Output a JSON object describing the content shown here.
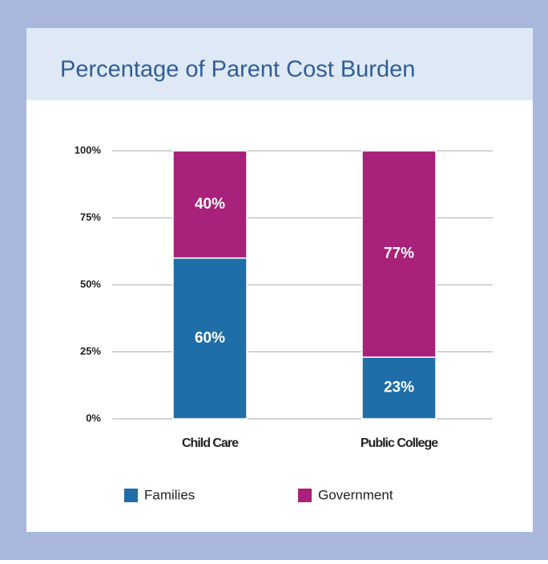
{
  "chart_data": {
    "type": "stacked_bar",
    "title": "Percentage of Parent Cost Burden",
    "categories": [
      "Child Care",
      "Public College"
    ],
    "series": [
      {
        "name": "Families",
        "color": "#1f6ea8",
        "values": [
          60,
          23
        ],
        "value_labels": [
          "60%",
          "23%"
        ]
      },
      {
        "name": "Government",
        "color": "#a8217a",
        "values": [
          40,
          77
        ],
        "value_labels": [
          "40%",
          "77%"
        ]
      }
    ],
    "ylim": [
      0,
      100
    ],
    "yticks": [
      {
        "value": 0,
        "label": "0%"
      },
      {
        "value": 25,
        "label": "25%"
      },
      {
        "value": 50,
        "label": "50%"
      },
      {
        "value": 75,
        "label": "75%"
      },
      {
        "value": 100,
        "label": "100%"
      }
    ],
    "grid": true,
    "legend": "bottom"
  }
}
